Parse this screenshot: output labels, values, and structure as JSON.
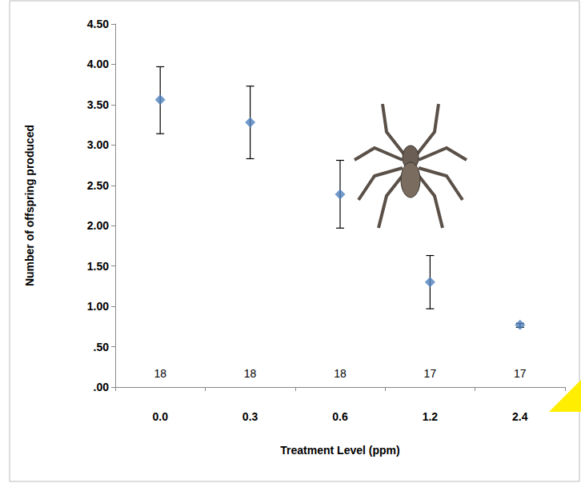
{
  "chart_data": {
    "type": "scatter",
    "x_label": "Treatment Level (ppm)",
    "y_label": "Number of offspring produced",
    "categories": [
      "0.0",
      "0.3",
      "0.6",
      "1.2",
      "2.4"
    ],
    "values": [
      3.56,
      3.28,
      2.39,
      1.3,
      0.77
    ],
    "y_lower": [
      3.14,
      2.83,
      1.97,
      0.97,
      0.74
    ],
    "y_upper": [
      3.97,
      3.73,
      2.81,
      1.63,
      0.79
    ],
    "sample_sizes": [
      18,
      18,
      18,
      17,
      17
    ],
    "color": "#4f81bd",
    "marker": "diamond",
    "ylim": [
      0,
      4.5
    ],
    "yticks": [
      {
        "value": 0,
        "label": ".00"
      },
      {
        "value": 0.5,
        "label": ".50"
      },
      {
        "value": 1,
        "label": "1.00"
      },
      {
        "value": 1.5,
        "label": "1.50"
      },
      {
        "value": 2,
        "label": "2.00"
      },
      {
        "value": 2.5,
        "label": "2.50"
      },
      {
        "value": 3,
        "label": "3.00"
      },
      {
        "value": 3.5,
        "label": "3.50"
      },
      {
        "value": 4,
        "label": "4.00"
      },
      {
        "value": 4.5,
        "label": "4.50"
      }
    ],
    "grid": false
  }
}
